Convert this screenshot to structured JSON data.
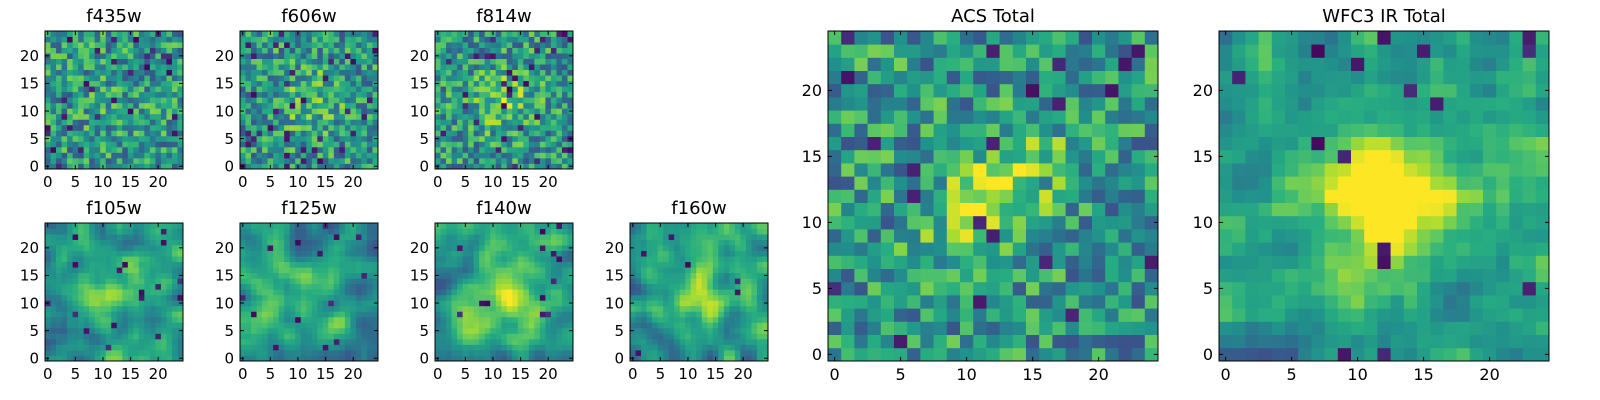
{
  "colors": {
    "colormap": "viridis",
    "low": "#440154",
    "mid": "#21908d",
    "high": "#fde725",
    "frame": "#000000",
    "background": "#ffffff"
  },
  "chart_data": [
    {
      "type": "heatmap",
      "title": "f435w",
      "grid_size": 25,
      "xlim": [
        0,
        24
      ],
      "ylim": [
        0,
        24
      ],
      "x_ticks": [
        0,
        5,
        10,
        15,
        20
      ],
      "y_ticks": [
        0,
        5,
        10,
        15,
        20
      ],
      "pattern": "uniform noise, weak structure",
      "values": []
    },
    {
      "type": "heatmap",
      "title": "f606w",
      "grid_size": 25,
      "xlim": [
        0,
        24
      ],
      "ylim": [
        0,
        24
      ],
      "x_ticks": [
        0,
        5,
        10,
        15,
        20
      ],
      "y_ticks": [
        0,
        5,
        10,
        15,
        20
      ],
      "pattern": "noise with faint central source",
      "values": []
    },
    {
      "type": "heatmap",
      "title": "f814w",
      "grid_size": 25,
      "xlim": [
        0,
        24
      ],
      "ylim": [
        0,
        24
      ],
      "x_ticks": [
        0,
        5,
        10,
        15,
        20
      ],
      "y_ticks": [
        0,
        5,
        10,
        15,
        20
      ],
      "pattern": "noise with central source",
      "values": []
    },
    {
      "type": "heatmap",
      "title": "f105w",
      "grid_size": 25,
      "xlim": [
        0,
        24
      ],
      "ylim": [
        0,
        24
      ],
      "x_ticks": [
        0,
        5,
        10,
        15,
        20
      ],
      "y_ticks": [
        0,
        5,
        10,
        15,
        20
      ],
      "pattern": "smooth correlated noise, bright center",
      "values": []
    },
    {
      "type": "heatmap",
      "title": "f125w",
      "grid_size": 25,
      "xlim": [
        0,
        24
      ],
      "ylim": [
        0,
        24
      ],
      "x_ticks": [
        0,
        5,
        10,
        15,
        20
      ],
      "y_ticks": [
        0,
        5,
        10,
        15,
        20
      ],
      "pattern": "smooth correlated noise",
      "values": []
    },
    {
      "type": "heatmap",
      "title": "f140w",
      "grid_size": 25,
      "xlim": [
        0,
        24
      ],
      "ylim": [
        0,
        24
      ],
      "x_ticks": [
        0,
        5,
        10,
        15,
        20
      ],
      "y_ticks": [
        0,
        5,
        10,
        15,
        20
      ],
      "pattern": "smooth correlated noise, bright center",
      "values": []
    },
    {
      "type": "heatmap",
      "title": "f160w",
      "grid_size": 25,
      "xlim": [
        0,
        24
      ],
      "ylim": [
        0,
        24
      ],
      "x_ticks": [
        0,
        5,
        10,
        15,
        20
      ],
      "y_ticks": [
        0,
        5,
        10,
        15,
        20
      ],
      "pattern": "smooth correlated noise, bright center",
      "values": []
    },
    {
      "type": "heatmap",
      "title": "ACS Total",
      "grid_size": 25,
      "xlim": [
        0,
        24
      ],
      "ylim": [
        0,
        24
      ],
      "x_ticks": [
        0,
        5,
        10,
        15,
        20
      ],
      "y_ticks": [
        0,
        5,
        10,
        15,
        20
      ],
      "pattern": "noise with diagonal central source",
      "values": []
    },
    {
      "type": "heatmap",
      "title": "WFC3 IR Total",
      "grid_size": 25,
      "xlim": [
        0,
        24
      ],
      "ylim": [
        0,
        24
      ],
      "x_ticks": [
        0,
        5,
        10,
        15,
        20
      ],
      "y_ticks": [
        0,
        5,
        10,
        15,
        20
      ],
      "pattern": "smooth, bright cross-shaped central source",
      "values": []
    }
  ]
}
